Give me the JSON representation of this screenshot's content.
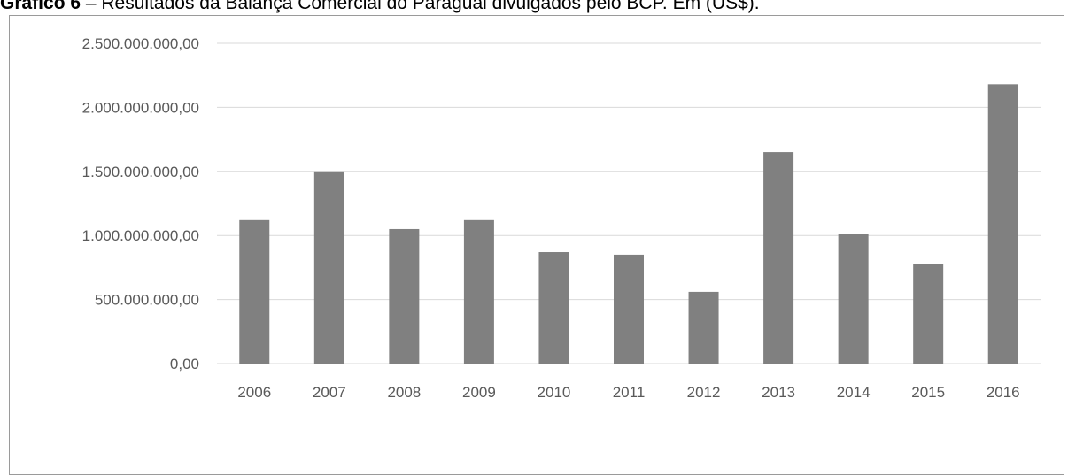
{
  "caption": {
    "label": "Gráfico 6",
    "text": " – Resultados da Balança Comercial do Paraguai divulgados pelo BCP. Em (US$)."
  },
  "colors": {
    "bar": "#808080",
    "grid": "#d9d9d9",
    "tick_text": "#595959",
    "frame": "#9a9a9a"
  },
  "chart_data": {
    "type": "bar",
    "categories": [
      "2006",
      "2007",
      "2008",
      "2009",
      "2010",
      "2011",
      "2012",
      "2013",
      "2014",
      "2015",
      "2016"
    ],
    "values": [
      1120000000,
      1500000000,
      1050000000,
      1120000000,
      870000000,
      850000000,
      560000000,
      1650000000,
      1010000000,
      780000000,
      2180000000
    ],
    "y_ticks": [
      0,
      500000000,
      1000000000,
      1500000000,
      2000000000,
      2500000000
    ],
    "y_tick_labels": [
      "0,00",
      "500.000.000,00",
      "1.000.000.000,00",
      "1.500.000.000,00",
      "2.000.000.000,00",
      "2.500.000.000,00"
    ],
    "ylim": [
      0,
      2500000000
    ],
    "grid": true,
    "legend": "none",
    "title": "",
    "xlabel": "",
    "ylabel": ""
  }
}
